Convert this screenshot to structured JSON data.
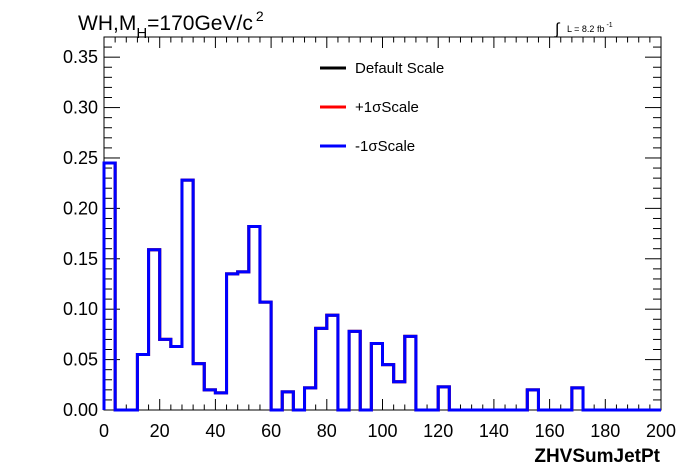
{
  "chart_data": {
    "type": "histogram",
    "title_main": "WH,M",
    "title_sub": "H",
    "title_rest": "=170GeV/c",
    "title_sup": "2",
    "lumi_integral": "∫",
    "lumi_text": "L = 8.2 fb",
    "lumi_sup": "-1",
    "xlabel": "ZHVSumJetPt",
    "ylabel": "",
    "xlim": [
      0,
      200
    ],
    "ylim": [
      0,
      0.37
    ],
    "x_ticks": [
      "0",
      "20",
      "40",
      "60",
      "80",
      "100",
      "120",
      "140",
      "160",
      "180",
      "200"
    ],
    "y_ticks": [
      "0.00",
      "0.05",
      "0.10",
      "0.15",
      "0.20",
      "0.25",
      "0.30",
      "0.35"
    ],
    "legend_position": "top-center",
    "bin_edges": [
      0,
      4,
      8,
      12,
      16,
      20,
      24,
      28,
      32,
      36,
      40,
      44,
      48,
      52,
      56,
      60,
      64,
      68,
      72,
      76,
      80,
      84,
      88,
      92,
      96,
      100,
      104,
      108,
      112,
      116,
      120,
      124,
      128,
      132,
      136,
      140,
      144,
      148,
      152,
      156,
      160,
      164,
      168,
      172,
      176,
      180,
      184,
      188,
      192,
      196,
      200
    ],
    "series": [
      {
        "name": "Default Scale",
        "color": "#000000",
        "values": [
          0.245,
          0,
          0,
          0.055,
          0.159,
          0.07,
          0.063,
          0.228,
          0.046,
          0.02,
          0.017,
          0.135,
          0.137,
          0.182,
          0.107,
          0,
          0.018,
          0,
          0.022,
          0.081,
          0.094,
          0,
          0.078,
          0,
          0.066,
          0.045,
          0.028,
          0.073,
          0,
          0,
          0.023,
          0,
          0,
          0,
          0,
          0,
          0,
          0,
          0.02,
          0,
          0,
          0,
          0.022,
          0,
          0,
          0,
          0,
          0,
          0,
          0
        ]
      },
      {
        "name": "+1σScale",
        "color": "#ff0000",
        "values": [
          0.245,
          0,
          0,
          0.055,
          0.159,
          0.07,
          0.063,
          0.228,
          0.046,
          0.02,
          0.017,
          0.135,
          0.137,
          0.182,
          0.107,
          0,
          0.018,
          0,
          0.022,
          0.081,
          0.094,
          0,
          0.078,
          0,
          0.066,
          0.045,
          0.028,
          0.073,
          0,
          0,
          0.023,
          0,
          0,
          0,
          0,
          0,
          0,
          0,
          0.02,
          0,
          0,
          0,
          0.022,
          0,
          0,
          0,
          0,
          0,
          0,
          0
        ]
      },
      {
        "name": "-1σScale",
        "color": "#0000ff",
        "values": [
          0.245,
          0,
          0,
          0.055,
          0.159,
          0.07,
          0.063,
          0.228,
          0.046,
          0.02,
          0.017,
          0.135,
          0.137,
          0.182,
          0.107,
          0,
          0.018,
          0,
          0.022,
          0.081,
          0.094,
          0,
          0.078,
          0,
          0.066,
          0.045,
          0.028,
          0.073,
          0,
          0,
          0.023,
          0,
          0,
          0,
          0,
          0,
          0,
          0,
          0.02,
          0,
          0,
          0,
          0.022,
          0,
          0,
          0,
          0,
          0,
          0,
          0
        ]
      }
    ]
  }
}
